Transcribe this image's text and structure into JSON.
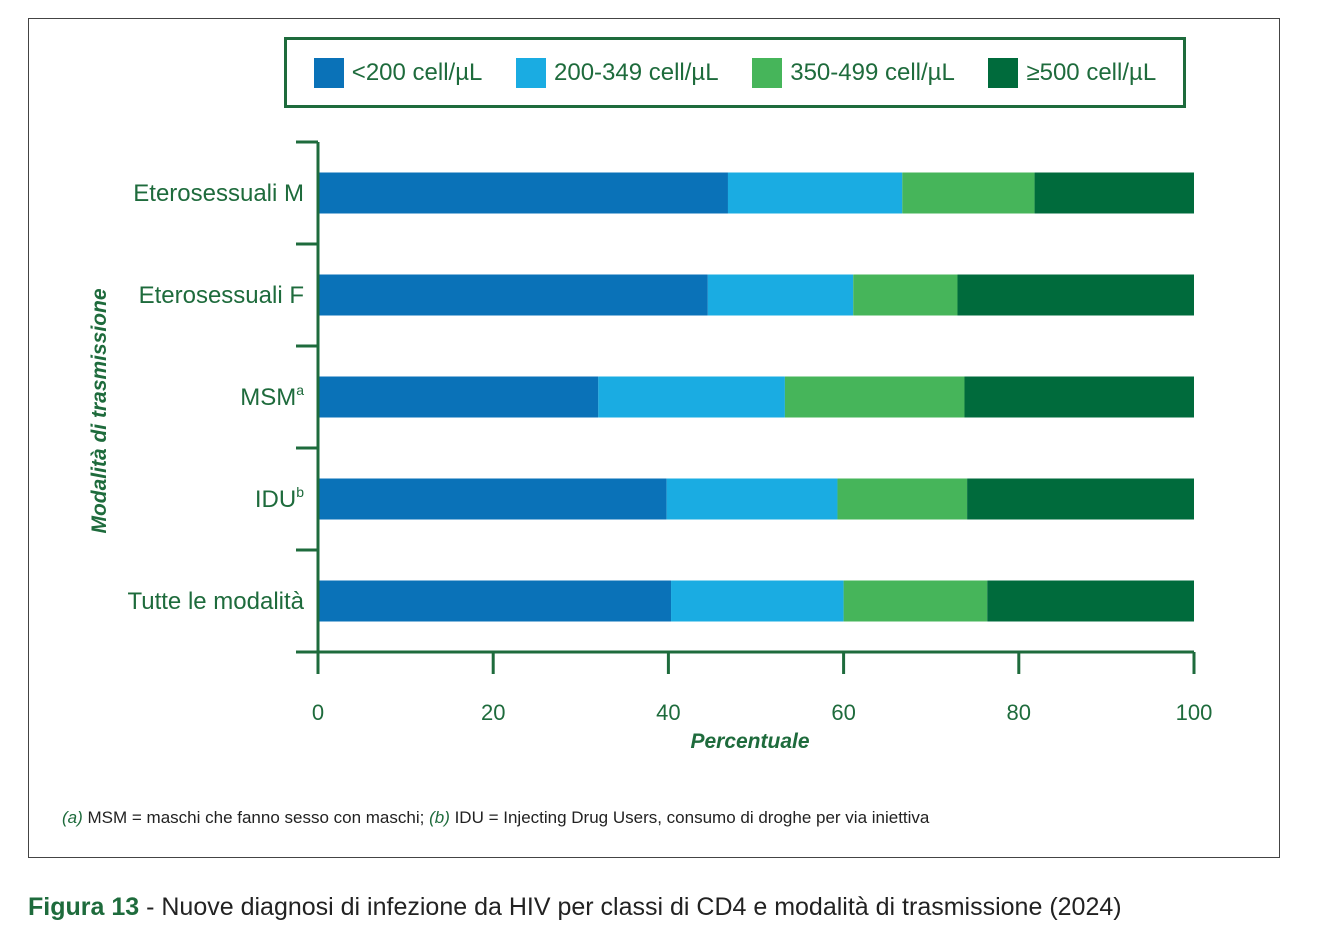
{
  "chart_data": {
    "type": "bar",
    "orientation": "horizontal",
    "stacked": true,
    "categories": [
      "Eterosessuali M",
      "Eterosessuali F",
      "MSM",
      "IDU",
      "Tutte le modalità"
    ],
    "category_superscripts": [
      "",
      "",
      "a",
      "b",
      ""
    ],
    "series": [
      {
        "name": "<200 cell/µL",
        "color": "#0a72b8",
        "values": [
          46.8,
          44.5,
          32.0,
          39.8,
          40.3
        ]
      },
      {
        "name": "200-349 cell/µL",
        "color": "#1aace2",
        "values": [
          19.9,
          16.6,
          21.3,
          19.5,
          19.7
        ]
      },
      {
        "name": "350-499 cell/µL",
        "color": "#46b55a",
        "values": [
          15.1,
          11.9,
          20.5,
          14.8,
          16.4
        ]
      },
      {
        "name": "≥500 cell/µL",
        "color": "#006b3c",
        "values": [
          18.2,
          27.0,
          26.2,
          25.9,
          23.6
        ]
      }
    ],
    "xticks": [
      "0",
      "20",
      "40",
      "60",
      "80",
      "100"
    ],
    "xlim": [
      0,
      100
    ],
    "xlabel": "Percentuale",
    "ylabel": "Modalità di trasmissione",
    "legend_position": "top"
  },
  "footnote": {
    "a_marker": "(a)",
    "a_text": " MSM = maschi che fanno sesso con maschi; ",
    "b_marker": "(b)",
    "b_text": " IDU = Injecting Drug Users, consumo di droghe per via iniettiva"
  },
  "caption": {
    "figure_label": "Figura 13",
    "text": " - Nuove diagnosi di infezione da HIV per classi di CD4 e modalità di trasmissione (2024)"
  },
  "colors": {
    "accent": "#1e6b3c"
  }
}
